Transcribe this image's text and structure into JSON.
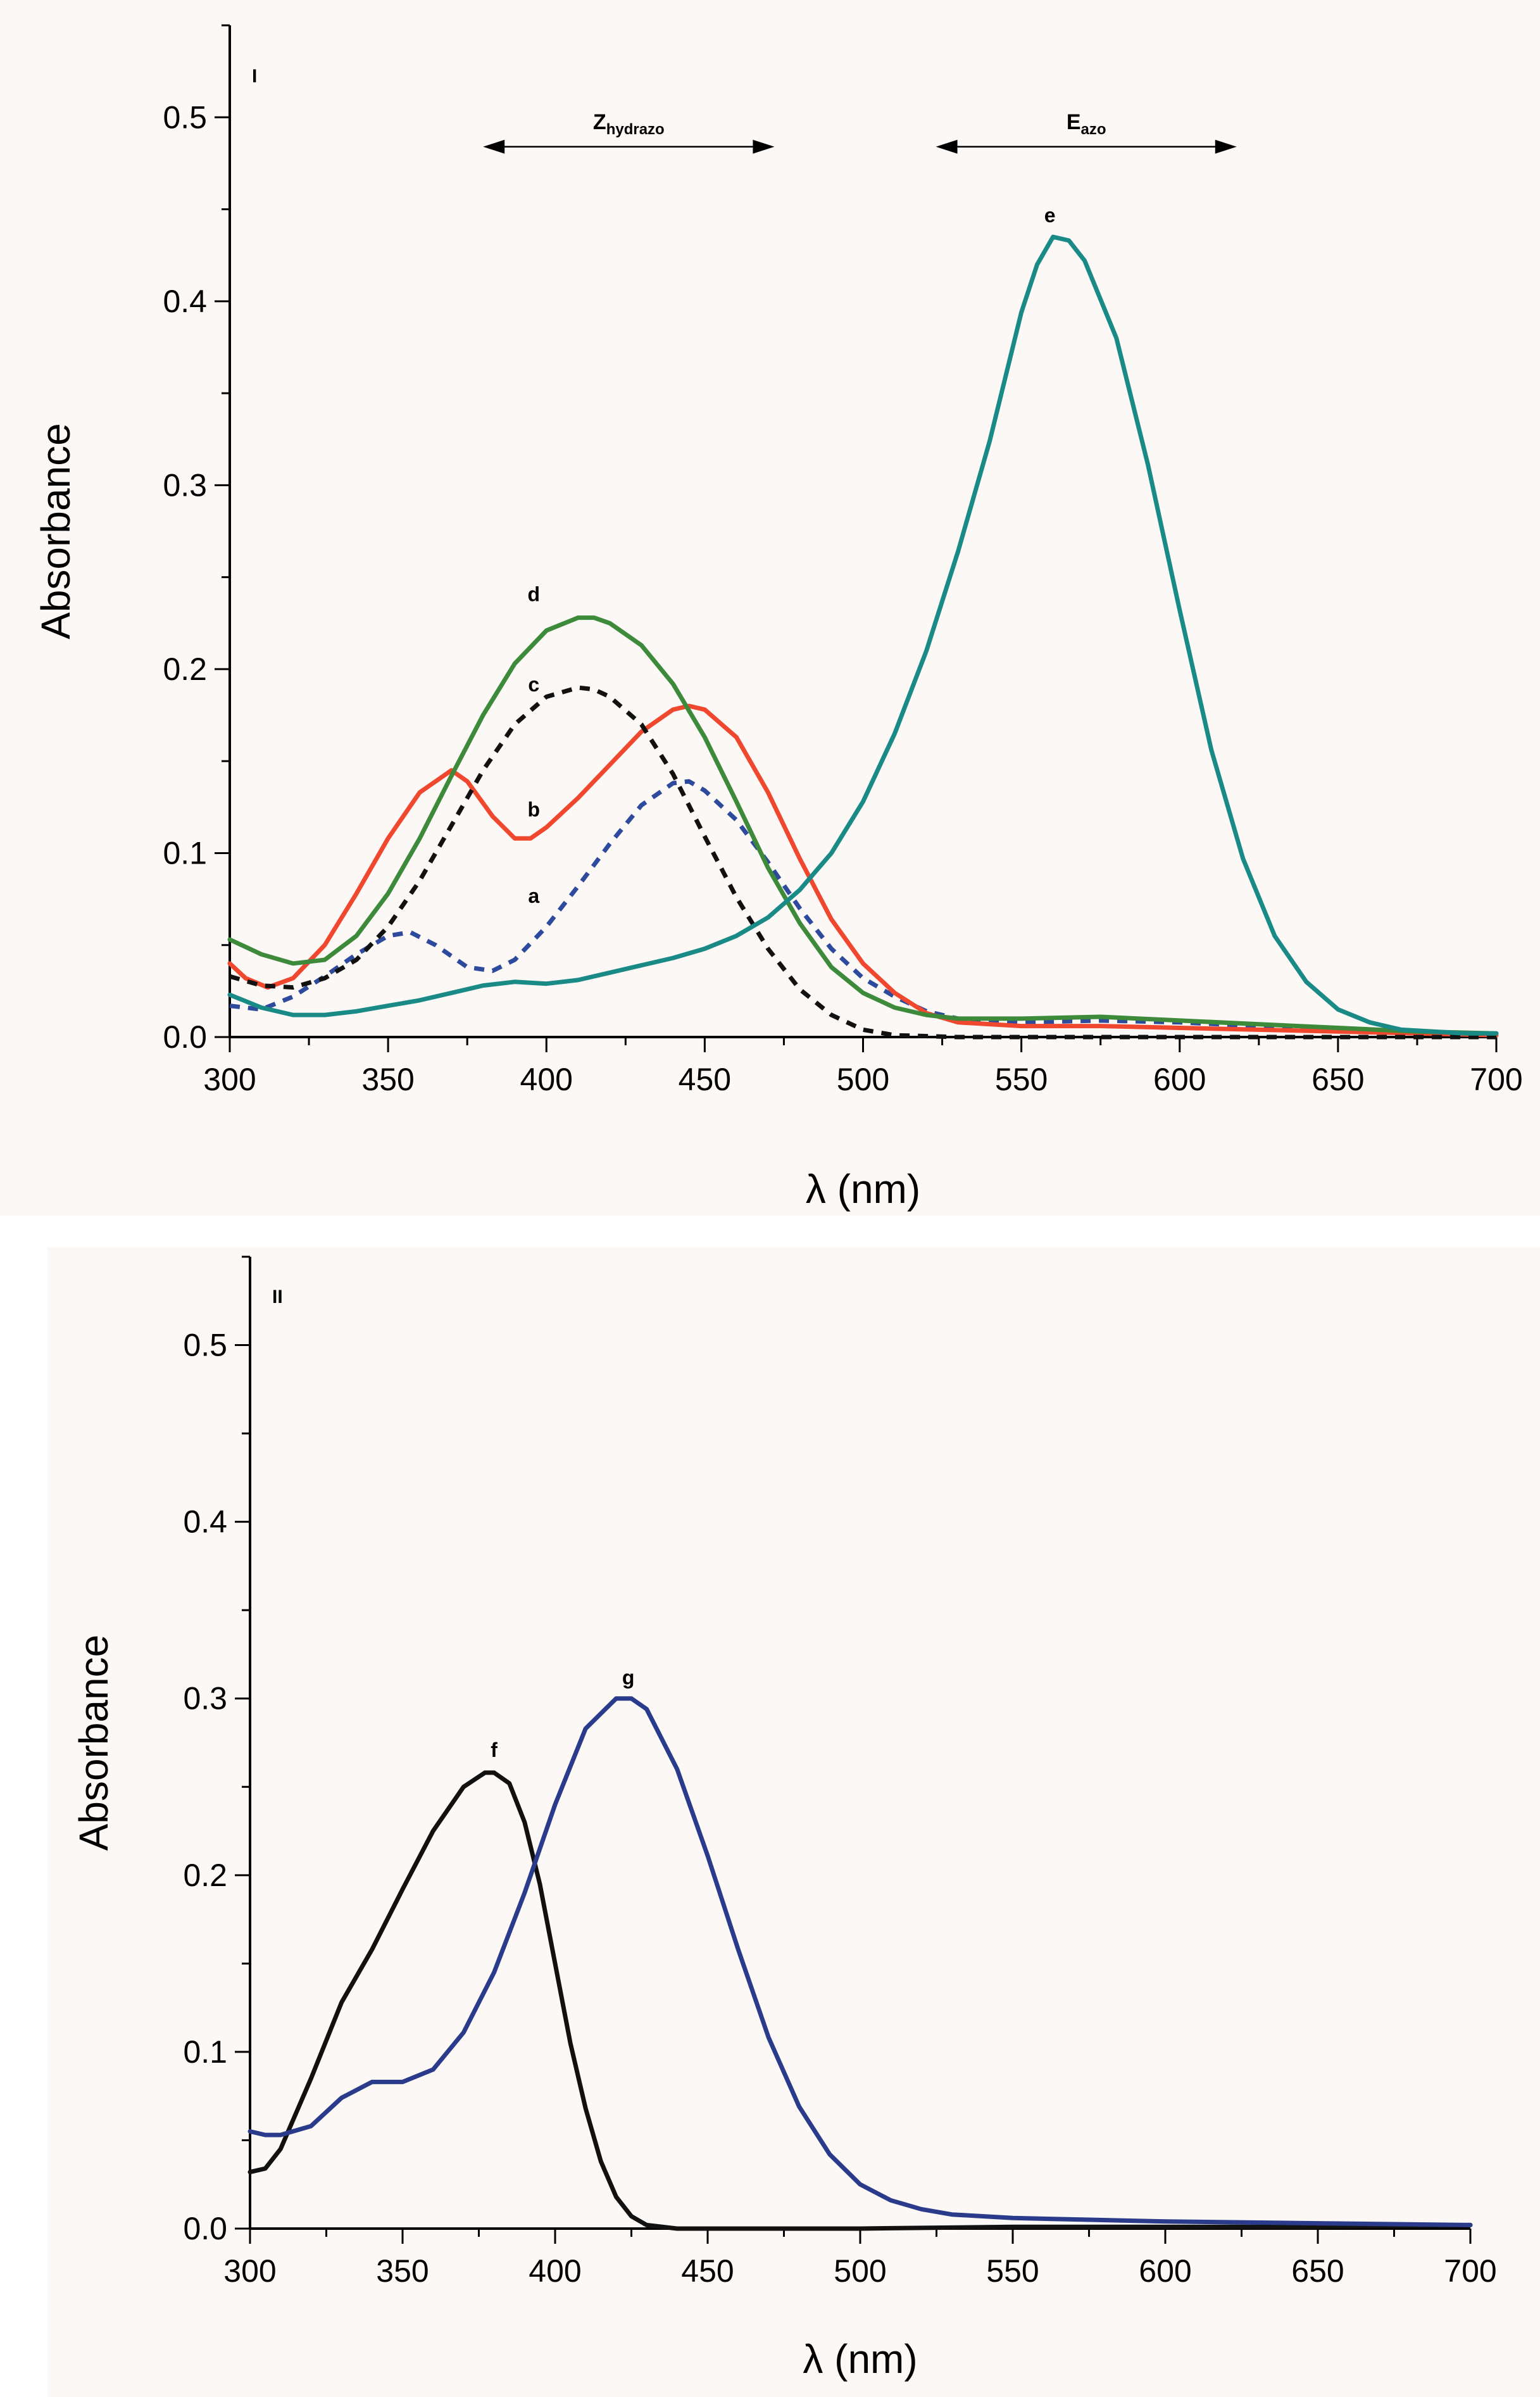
{
  "chart_data": [
    {
      "panel_label": "I",
      "type": "line",
      "xlabel": "λ (nm)",
      "ylabel": "Absorbance",
      "xlim": [
        300,
        700
      ],
      "ylim": [
        0,
        0.55
      ],
      "x_ticks": [
        "300",
        "350",
        "400",
        "450",
        "500",
        "550",
        "600",
        "650",
        "700"
      ],
      "y_ticks": [
        "0.0",
        "0.1",
        "0.2",
        "0.3",
        "0.4",
        "0.5"
      ],
      "grid": false,
      "legend": "none",
      "annotations": [
        {
          "text": "Z",
          "subscript": "hydrazo",
          "x_range": [
            380,
            472
          ],
          "y": 0.484
        },
        {
          "text": "E",
          "subscript": "azo",
          "x_range": [
            523,
            618
          ],
          "y": 0.484
        }
      ],
      "series": [
        {
          "label": "a",
          "color": "#2e4a9c",
          "dash": true,
          "label_x": 396,
          "label_y": 0.073,
          "points": [
            [
              300,
              0.017
            ],
            [
              310,
              0.015
            ],
            [
              320,
              0.022
            ],
            [
              330,
              0.033
            ],
            [
              340,
              0.045
            ],
            [
              350,
              0.055
            ],
            [
              357,
              0.057
            ],
            [
              365,
              0.05
            ],
            [
              375,
              0.038
            ],
            [
              383,
              0.036
            ],
            [
              390,
              0.042
            ],
            [
              400,
              0.06
            ],
            [
              410,
              0.082
            ],
            [
              420,
              0.105
            ],
            [
              430,
              0.126
            ],
            [
              440,
              0.138
            ],
            [
              445,
              0.139
            ],
            [
              450,
              0.134
            ],
            [
              460,
              0.118
            ],
            [
              470,
              0.095
            ],
            [
              480,
              0.07
            ],
            [
              490,
              0.048
            ],
            [
              500,
              0.032
            ],
            [
              510,
              0.022
            ],
            [
              520,
              0.014
            ],
            [
              530,
              0.01
            ],
            [
              550,
              0.008
            ],
            [
              575,
              0.009
            ],
            [
              600,
              0.008
            ],
            [
              625,
              0.006
            ],
            [
              650,
              0.004
            ],
            [
              675,
              0.002
            ],
            [
              700,
              0.001
            ]
          ]
        },
        {
          "label": "b",
          "color": "#f0472f",
          "dash": false,
          "label_x": 396,
          "label_y": 0.12,
          "points": [
            [
              300,
              0.04
            ],
            [
              305,
              0.032
            ],
            [
              312,
              0.027
            ],
            [
              320,
              0.032
            ],
            [
              330,
              0.05
            ],
            [
              340,
              0.078
            ],
            [
              350,
              0.108
            ],
            [
              360,
              0.133
            ],
            [
              370,
              0.145
            ],
            [
              375,
              0.139
            ],
            [
              383,
              0.12
            ],
            [
              390,
              0.108
            ],
            [
              395,
              0.108
            ],
            [
              400,
              0.114
            ],
            [
              410,
              0.13
            ],
            [
              420,
              0.148
            ],
            [
              430,
              0.166
            ],
            [
              440,
              0.178
            ],
            [
              445,
              0.18
            ],
            [
              450,
              0.178
            ],
            [
              460,
              0.163
            ],
            [
              470,
              0.133
            ],
            [
              480,
              0.097
            ],
            [
              490,
              0.064
            ],
            [
              500,
              0.04
            ],
            [
              510,
              0.024
            ],
            [
              520,
              0.013
            ],
            [
              530,
              0.008
            ],
            [
              550,
              0.006
            ],
            [
              575,
              0.006
            ],
            [
              600,
              0.005
            ],
            [
              625,
              0.004
            ],
            [
              650,
              0.003
            ],
            [
              675,
              0.002
            ],
            [
              700,
              0.001
            ]
          ]
        },
        {
          "label": "c",
          "color": "#111111",
          "dash": true,
          "label_x": 396,
          "label_y": 0.188,
          "points": [
            [
              300,
              0.033
            ],
            [
              310,
              0.028
            ],
            [
              320,
              0.027
            ],
            [
              330,
              0.032
            ],
            [
              340,
              0.042
            ],
            [
              350,
              0.06
            ],
            [
              360,
              0.085
            ],
            [
              370,
              0.115
            ],
            [
              380,
              0.145
            ],
            [
              390,
              0.17
            ],
            [
              400,
              0.185
            ],
            [
              410,
              0.19
            ],
            [
              415,
              0.189
            ],
            [
              420,
              0.185
            ],
            [
              430,
              0.17
            ],
            [
              440,
              0.143
            ],
            [
              450,
              0.109
            ],
            [
              460,
              0.076
            ],
            [
              470,
              0.048
            ],
            [
              480,
              0.026
            ],
            [
              490,
              0.012
            ],
            [
              500,
              0.004
            ],
            [
              510,
              0.001
            ],
            [
              530,
              0.0
            ],
            [
              600,
              0.0
            ],
            [
              700,
              0.0
            ]
          ]
        },
        {
          "label": "d",
          "color": "#3c8a3a",
          "dash": false,
          "label_x": 396,
          "label_y": 0.237,
          "points": [
            [
              300,
              0.053
            ],
            [
              310,
              0.045
            ],
            [
              320,
              0.04
            ],
            [
              330,
              0.042
            ],
            [
              340,
              0.055
            ],
            [
              350,
              0.078
            ],
            [
              360,
              0.108
            ],
            [
              370,
              0.142
            ],
            [
              380,
              0.175
            ],
            [
              390,
              0.203
            ],
            [
              400,
              0.221
            ],
            [
              410,
              0.228
            ],
            [
              415,
              0.228
            ],
            [
              420,
              0.225
            ],
            [
              430,
              0.213
            ],
            [
              440,
              0.192
            ],
            [
              450,
              0.163
            ],
            [
              460,
              0.128
            ],
            [
              470,
              0.092
            ],
            [
              480,
              0.062
            ],
            [
              490,
              0.038
            ],
            [
              500,
              0.024
            ],
            [
              510,
              0.016
            ],
            [
              520,
              0.012
            ],
            [
              530,
              0.01
            ],
            [
              550,
              0.01
            ],
            [
              575,
              0.011
            ],
            [
              600,
              0.009
            ],
            [
              625,
              0.007
            ],
            [
              650,
              0.005
            ],
            [
              675,
              0.003
            ],
            [
              700,
              0.002
            ]
          ]
        },
        {
          "label": "e",
          "color": "#1a8a86",
          "dash": false,
          "label_x": 559,
          "label_y": 0.443,
          "points": [
            [
              300,
              0.023
            ],
            [
              310,
              0.016
            ],
            [
              320,
              0.012
            ],
            [
              330,
              0.012
            ],
            [
              340,
              0.014
            ],
            [
              350,
              0.017
            ],
            [
              360,
              0.02
            ],
            [
              370,
              0.024
            ],
            [
              380,
              0.028
            ],
            [
              390,
              0.03
            ],
            [
              400,
              0.029
            ],
            [
              410,
              0.031
            ],
            [
              420,
              0.035
            ],
            [
              430,
              0.039
            ],
            [
              440,
              0.043
            ],
            [
              450,
              0.048
            ],
            [
              460,
              0.055
            ],
            [
              470,
              0.065
            ],
            [
              480,
              0.08
            ],
            [
              490,
              0.1
            ],
            [
              500,
              0.128
            ],
            [
              510,
              0.165
            ],
            [
              520,
              0.21
            ],
            [
              530,
              0.264
            ],
            [
              540,
              0.324
            ],
            [
              550,
              0.394
            ],
            [
              555,
              0.42
            ],
            [
              560,
              0.435
            ],
            [
              565,
              0.433
            ],
            [
              570,
              0.422
            ],
            [
              580,
              0.38
            ],
            [
              590,
              0.311
            ],
            [
              600,
              0.232
            ],
            [
              610,
              0.156
            ],
            [
              620,
              0.097
            ],
            [
              630,
              0.055
            ],
            [
              640,
              0.03
            ],
            [
              650,
              0.015
            ],
            [
              660,
              0.008
            ],
            [
              670,
              0.004
            ],
            [
              680,
              0.003
            ],
            [
              690,
              0.002
            ],
            [
              700,
              0.002
            ]
          ]
        }
      ]
    },
    {
      "panel_label": "II",
      "type": "line",
      "xlabel": "λ (nm)",
      "ylabel": "Absorbance",
      "xlim": [
        300,
        700
      ],
      "ylim": [
        0,
        0.55
      ],
      "x_ticks": [
        "300",
        "350",
        "400",
        "450",
        "500",
        "550",
        "600",
        "650",
        "700"
      ],
      "y_ticks": [
        "0.0",
        "0.1",
        "0.2",
        "0.3",
        "0.4",
        "0.5"
      ],
      "grid": false,
      "legend": "none",
      "annotations": [],
      "series": [
        {
          "label": "f",
          "color": "#111111",
          "dash": false,
          "label_x": 380,
          "label_y": 0.267,
          "points": [
            [
              300,
              0.032
            ],
            [
              305,
              0.034
            ],
            [
              310,
              0.045
            ],
            [
              320,
              0.085
            ],
            [
              330,
              0.128
            ],
            [
              340,
              0.158
            ],
            [
              350,
              0.192
            ],
            [
              360,
              0.225
            ],
            [
              370,
              0.25
            ],
            [
              377,
              0.258
            ],
            [
              380,
              0.258
            ],
            [
              385,
              0.252
            ],
            [
              390,
              0.23
            ],
            [
              395,
              0.195
            ],
            [
              400,
              0.15
            ],
            [
              405,
              0.105
            ],
            [
              410,
              0.068
            ],
            [
              415,
              0.038
            ],
            [
              420,
              0.018
            ],
            [
              425,
              0.007
            ],
            [
              430,
              0.002
            ],
            [
              440,
              0.0
            ],
            [
              500,
              0.0
            ],
            [
              550,
              0.001
            ],
            [
              600,
              0.001
            ],
            [
              650,
              0.001
            ],
            [
              700,
              0.002
            ]
          ]
        },
        {
          "label": "g",
          "color": "#2b3b8c",
          "dash": false,
          "label_x": 424,
          "label_y": 0.308,
          "points": [
            [
              300,
              0.055
            ],
            [
              305,
              0.053
            ],
            [
              310,
              0.053
            ],
            [
              320,
              0.058
            ],
            [
              330,
              0.074
            ],
            [
              340,
              0.083
            ],
            [
              350,
              0.083
            ],
            [
              360,
              0.09
            ],
            [
              370,
              0.111
            ],
            [
              380,
              0.145
            ],
            [
              390,
              0.19
            ],
            [
              400,
              0.24
            ],
            [
              410,
              0.283
            ],
            [
              420,
              0.3
            ],
            [
              425,
              0.3
            ],
            [
              430,
              0.294
            ],
            [
              440,
              0.26
            ],
            [
              450,
              0.211
            ],
            [
              460,
              0.158
            ],
            [
              470,
              0.108
            ],
            [
              480,
              0.069
            ],
            [
              490,
              0.042
            ],
            [
              500,
              0.025
            ],
            [
              510,
              0.016
            ],
            [
              520,
              0.011
            ],
            [
              530,
              0.008
            ],
            [
              550,
              0.006
            ],
            [
              575,
              0.005
            ],
            [
              600,
              0.004
            ],
            [
              650,
              0.003
            ],
            [
              700,
              0.002
            ]
          ]
        }
      ]
    }
  ]
}
